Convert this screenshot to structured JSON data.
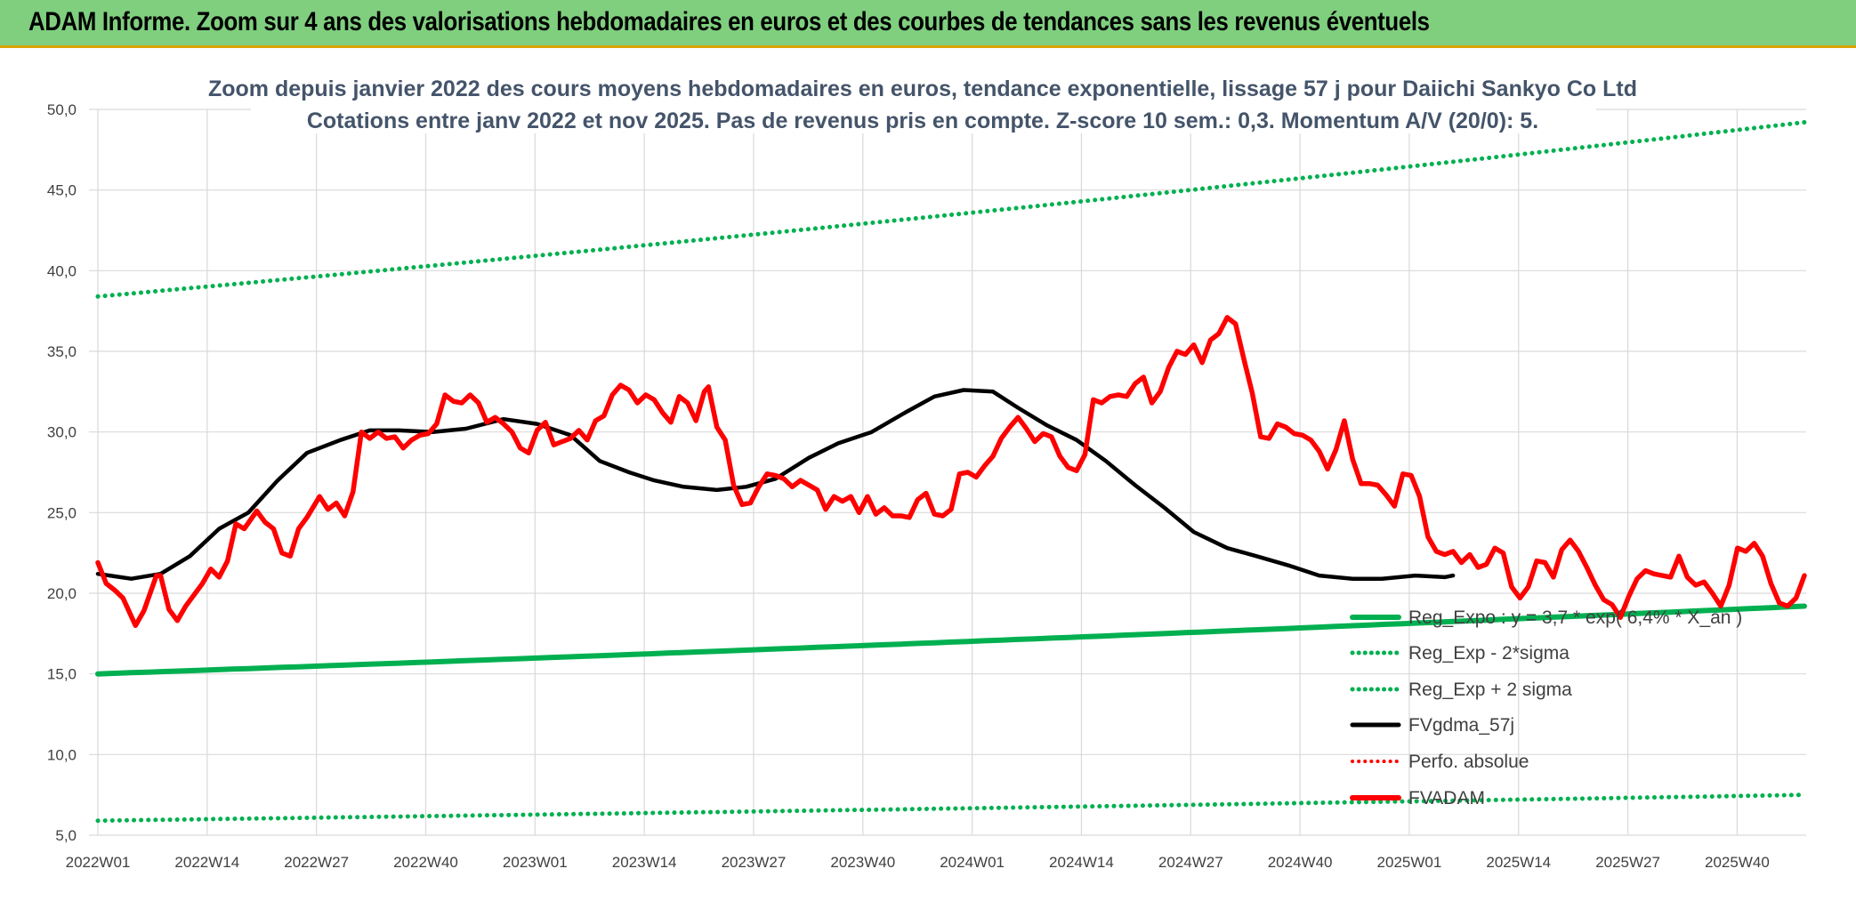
{
  "banner": {
    "title": "ADAM Informe. Zoom sur 4 ans des valorisations hebdomadaires en euros et des courbes de tendances sans les revenus éventuels",
    "bg_color": "#7fcf7f",
    "border_color": "#d9a400"
  },
  "chart_data": {
    "type": "line",
    "title_line1": "Zoom depuis janvier 2022 des cours moyens hebdomadaires en euros, tendance exponentielle, lissage 57 j pour Daiichi Sankyo Co Ltd",
    "title_line2": "Cotations entre janv 2022 et nov 2025. Pas de revenus pris en compte. Z-score 10 sem.: 0,3. Momentum A/V (20/0): 5.",
    "ylim": [
      5,
      50
    ],
    "y_ticks": [
      "5,0",
      "10,0",
      "15,0",
      "20,0",
      "25,0",
      "30,0",
      "35,0",
      "40,0",
      "45,0",
      "50,0"
    ],
    "x_ticks": [
      "2022W01",
      "2022W14",
      "2022W27",
      "2022W40",
      "2023W01",
      "2023W14",
      "2023W27",
      "2023W40",
      "2024W01",
      "2024W14",
      "2024W27",
      "2024W40",
      "2025W01",
      "2025W14",
      "2025W27",
      "2025W40"
    ],
    "n_weeks": 204,
    "grid": true,
    "legend_position": "bottom-right",
    "series": [
      {
        "name": "Reg_Expo : y = 3,7 * exp( 6,4% * X_an )",
        "color": "#00b050",
        "style": "solid-thick",
        "start": 15.0,
        "end": 19.2
      },
      {
        "name": "Reg_Exp - 2*sigma",
        "color": "#00b050",
        "style": "dotted",
        "start": 5.9,
        "end": 7.5
      },
      {
        "name": "Reg_Exp + 2 sigma",
        "color": "#00b050",
        "style": "dotted",
        "start": 38.4,
        "end": 49.2
      },
      {
        "name": "FVgdma_57j",
        "color": "#000000",
        "style": "solid",
        "points": [
          [
            0,
            21.2
          ],
          [
            8,
            20.9
          ],
          [
            15,
            21.2
          ],
          [
            22,
            22.3
          ],
          [
            29,
            24
          ],
          [
            36,
            25
          ],
          [
            43,
            27
          ],
          [
            50,
            28.7
          ],
          [
            58,
            29.5
          ],
          [
            65,
            30.1
          ],
          [
            72,
            30.1
          ],
          [
            80,
            30
          ],
          [
            88,
            30.2
          ],
          [
            97,
            30.8
          ],
          [
            105,
            30.5
          ],
          [
            113,
            29.8
          ],
          [
            120,
            28.2
          ],
          [
            127,
            27.5
          ],
          [
            133,
            27
          ],
          [
            140,
            26.6
          ],
          [
            148,
            26.4
          ],
          [
            155,
            26.6
          ],
          [
            162,
            27.1
          ],
          [
            170,
            28.4
          ],
          [
            177,
            29.3
          ],
          [
            185,
            30
          ],
          [
            193,
            31.2
          ],
          [
            200,
            32.2
          ],
          [
            207,
            32.6
          ],
          [
            214,
            32.5
          ],
          [
            220,
            31.5
          ],
          [
            227,
            30.4
          ],
          [
            234,
            29.5
          ],
          [
            241,
            28.2
          ],
          [
            248,
            26.7
          ],
          [
            255,
            25.3
          ],
          [
            262,
            23.8
          ],
          [
            270,
            22.8
          ],
          [
            277,
            22.3
          ],
          [
            285,
            21.7
          ],
          [
            292,
            21.1
          ],
          [
            300,
            20.9
          ],
          [
            307,
            20.9
          ],
          [
            315,
            21.1
          ],
          [
            322,
            21
          ],
          [
            324,
            21.1
          ]
        ]
      },
      {
        "name": "Perfo. absolue",
        "color": "#ff0000",
        "style": "dotted"
      },
      {
        "name": "FVADAM",
        "color": "#ff0000",
        "style": "solid-thick",
        "points": [
          [
            0,
            21.9
          ],
          [
            2,
            20.6
          ],
          [
            4,
            20.2
          ],
          [
            6,
            19.7
          ],
          [
            9,
            18
          ],
          [
            11,
            18.9
          ],
          [
            14,
            21.1
          ],
          [
            15,
            21.1
          ],
          [
            17,
            19
          ],
          [
            19,
            18.3
          ],
          [
            21,
            19.2
          ],
          [
            25,
            20.6
          ],
          [
            27,
            21.5
          ],
          [
            29,
            21
          ],
          [
            31,
            22
          ],
          [
            33,
            24.3
          ],
          [
            35,
            24
          ],
          [
            38,
            25.1
          ],
          [
            40,
            24.4
          ],
          [
            42,
            24
          ],
          [
            44,
            22.5
          ],
          [
            46,
            22.3
          ],
          [
            48,
            24
          ],
          [
            50,
            24.7
          ],
          [
            53,
            26
          ],
          [
            55,
            25.2
          ],
          [
            57,
            25.6
          ],
          [
            59,
            24.8
          ],
          [
            61,
            26.3
          ],
          [
            63,
            30
          ],
          [
            65,
            29.6
          ],
          [
            67,
            30
          ],
          [
            69,
            29.6
          ],
          [
            71,
            29.7
          ],
          [
            73,
            29
          ],
          [
            75,
            29.5
          ],
          [
            77,
            29.8
          ],
          [
            79,
            29.9
          ],
          [
            81,
            30.5
          ],
          [
            83,
            32.3
          ],
          [
            85,
            31.9
          ],
          [
            87,
            31.8
          ],
          [
            89,
            32.3
          ],
          [
            91,
            31.8
          ],
          [
            93,
            30.6
          ],
          [
            95,
            30.9
          ],
          [
            97,
            30.5
          ],
          [
            99,
            30
          ],
          [
            101,
            29
          ],
          [
            103,
            28.7
          ],
          [
            105,
            30.1
          ],
          [
            107,
            30.6
          ],
          [
            109,
            29.2
          ],
          [
            111,
            29.4
          ],
          [
            113,
            29.6
          ],
          [
            115,
            30.1
          ],
          [
            117,
            29.5
          ],
          [
            119,
            30.7
          ],
          [
            121,
            31
          ],
          [
            123,
            32.3
          ],
          [
            125,
            32.9
          ],
          [
            127,
            32.6
          ],
          [
            129,
            31.8
          ],
          [
            131,
            32.3
          ],
          [
            133,
            32
          ],
          [
            135,
            31.2
          ],
          [
            137,
            30.6
          ],
          [
            139,
            32.2
          ],
          [
            141,
            31.8
          ],
          [
            143,
            30.7
          ],
          [
            145,
            32.5
          ],
          [
            146,
            32.8
          ],
          [
            148,
            30.3
          ],
          [
            150,
            29.5
          ],
          [
            152,
            26.7
          ],
          [
            154,
            25.5
          ],
          [
            156,
            25.6
          ],
          [
            158,
            26.6
          ],
          [
            160,
            27.4
          ],
          [
            162,
            27.3
          ],
          [
            164,
            27.1
          ],
          [
            166,
            26.6
          ],
          [
            168,
            27
          ],
          [
            170,
            26.7
          ],
          [
            172,
            26.4
          ],
          [
            174,
            25.2
          ],
          [
            176,
            26
          ],
          [
            178,
            25.7
          ],
          [
            180,
            26
          ],
          [
            182,
            25
          ],
          [
            184,
            26
          ],
          [
            186,
            24.9
          ],
          [
            188,
            25.3
          ],
          [
            190,
            24.8
          ],
          [
            192,
            24.8
          ],
          [
            194,
            24.7
          ],
          [
            196,
            25.8
          ],
          [
            198,
            26.2
          ],
          [
            200,
            24.9
          ],
          [
            202,
            24.8
          ],
          [
            204,
            25.2
          ],
          [
            206,
            27.4
          ],
          [
            208,
            27.5
          ],
          [
            210,
            27.2
          ],
          [
            212,
            27.9
          ],
          [
            214,
            28.5
          ],
          [
            216,
            29.6
          ],
          [
            218,
            30.3
          ],
          [
            220,
            30.9
          ],
          [
            222,
            30.2
          ],
          [
            224,
            29.4
          ],
          [
            226,
            29.9
          ],
          [
            228,
            29.7
          ],
          [
            230,
            28.5
          ],
          [
            232,
            27.8
          ],
          [
            234,
            27.6
          ],
          [
            236,
            28.6
          ],
          [
            238,
            32
          ],
          [
            240,
            31.8
          ],
          [
            242,
            32.2
          ],
          [
            244,
            32.3
          ],
          [
            246,
            32.2
          ],
          [
            248,
            33
          ],
          [
            250,
            33.4
          ],
          [
            252,
            31.8
          ],
          [
            254,
            32.5
          ],
          [
            256,
            34
          ],
          [
            258,
            35
          ],
          [
            260,
            34.8
          ],
          [
            262,
            35.4
          ],
          [
            264,
            34.3
          ],
          [
            266,
            35.7
          ],
          [
            268,
            36.1
          ],
          [
            270,
            37.1
          ],
          [
            272,
            36.7
          ],
          [
            274,
            34.5
          ],
          [
            276,
            32.4
          ],
          [
            278,
            29.7
          ],
          [
            280,
            29.6
          ],
          [
            282,
            30.5
          ],
          [
            284,
            30.3
          ],
          [
            286,
            29.9
          ],
          [
            288,
            29.8
          ],
          [
            290,
            29.5
          ],
          [
            292,
            28.8
          ],
          [
            294,
            27.7
          ],
          [
            296,
            28.9
          ],
          [
            298,
            30.7
          ],
          [
            300,
            28.3
          ],
          [
            302,
            26.8
          ],
          [
            304,
            26.8
          ],
          [
            306,
            26.7
          ],
          [
            308,
            26.1
          ],
          [
            310,
            25.4
          ],
          [
            312,
            27.4
          ],
          [
            314,
            27.3
          ],
          [
            316,
            26
          ],
          [
            318,
            23.5
          ],
          [
            320,
            22.6
          ],
          [
            322,
            22.4
          ],
          [
            324,
            22.6
          ],
          [
            326,
            21.9
          ],
          [
            328,
            22.4
          ],
          [
            330,
            21.6
          ],
          [
            332,
            21.8
          ],
          [
            334,
            22.8
          ],
          [
            336,
            22.5
          ],
          [
            338,
            20.4
          ],
          [
            340,
            19.7
          ],
          [
            342,
            20.4
          ],
          [
            344,
            22
          ],
          [
            346,
            21.9
          ],
          [
            348,
            21
          ],
          [
            350,
            22.7
          ],
          [
            352,
            23.3
          ],
          [
            354,
            22.6
          ],
          [
            356,
            21.6
          ],
          [
            358,
            20.5
          ],
          [
            360,
            19.6
          ],
          [
            362,
            19.3
          ],
          [
            364,
            18.5
          ],
          [
            366,
            19.8
          ],
          [
            368,
            20.9
          ],
          [
            370,
            21.4
          ],
          [
            372,
            21.2
          ],
          [
            374,
            21.1
          ],
          [
            376,
            21
          ],
          [
            378,
            22.3
          ],
          [
            380,
            21
          ],
          [
            382,
            20.5
          ],
          [
            384,
            20.7
          ],
          [
            386,
            20
          ],
          [
            388,
            19.2
          ],
          [
            390,
            20.5
          ],
          [
            392,
            22.8
          ],
          [
            394,
            22.6
          ],
          [
            396,
            23.1
          ],
          [
            398,
            22.3
          ],
          [
            400,
            20.6
          ],
          [
            402,
            19.4
          ],
          [
            404,
            19.2
          ],
          [
            406,
            19.7
          ],
          [
            408,
            21.1
          ]
        ]
      }
    ]
  }
}
